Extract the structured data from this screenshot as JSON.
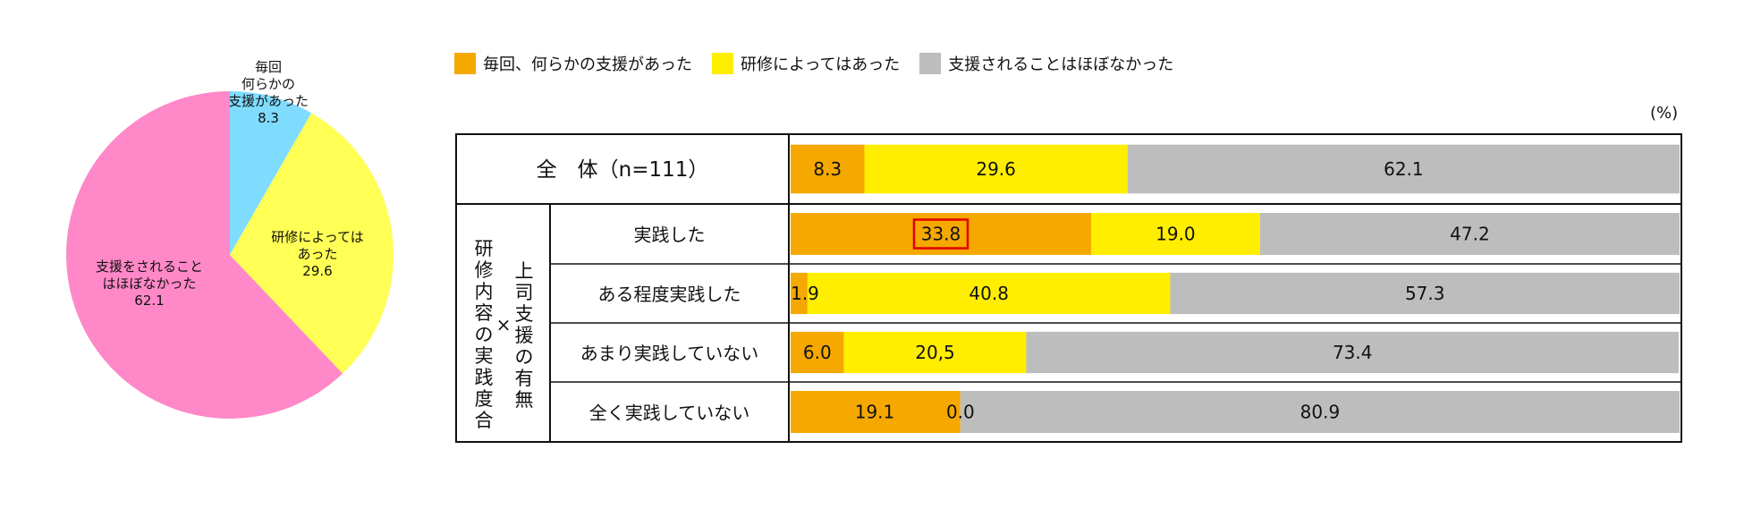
{
  "colors": {
    "every_time": "#f5a800",
    "depends": "#ffee00",
    "rarely": "#bdbdbd",
    "pie_every_time": "#7fdcff",
    "pie_depends": "#ffff55",
    "pie_rarely": "#ff88c8",
    "highlight": "#e00000"
  },
  "unit_label": "(%)",
  "chart_data": [
    {
      "type": "pie",
      "slices": [
        {
          "label_lines": [
            "毎回",
            "何らかの",
            "支援があった"
          ],
          "value": 8.3,
          "value_text": "8.3",
          "color_key": "pie_every_time"
        },
        {
          "label_lines": [
            "研修によっては",
            "あった"
          ],
          "value": 29.6,
          "value_text": "29.6",
          "color_key": "pie_depends"
        },
        {
          "label_lines": [
            "支援をされること",
            "はほぼなかった"
          ],
          "value": 62.1,
          "value_text": "62.1",
          "color_key": "pie_rarely"
        }
      ]
    },
    {
      "type": "bar",
      "orientation": "horizontal",
      "stacked": true,
      "legend": [
        "毎回、何らかの支援があった",
        "研修によってはあった",
        "支援されることはほぼなかった"
      ],
      "group_label": "研修内容の実践度合",
      "group_label_2": "上司支援の有無",
      "group_separator": "×",
      "rows": [
        {
          "label": "全　体（n=111）",
          "values": [
            8.3,
            29.6,
            62.1
          ],
          "value_texts": [
            "8.3",
            "29.6",
            "62.1"
          ]
        },
        {
          "label": "実践した",
          "values": [
            33.8,
            19.0,
            47.2
          ],
          "value_texts": [
            "33.8",
            "19.0",
            "47.2"
          ],
          "highlight_index": 0
        },
        {
          "label": "ある程度実践した",
          "values": [
            1.9,
            40.8,
            57.3
          ],
          "value_texts": [
            "1.9",
            "40.8",
            "57.3"
          ]
        },
        {
          "label": "あまり実践していない",
          "values": [
            6.0,
            20.5,
            73.4
          ],
          "value_texts": [
            "6.0",
            "20,5",
            "73.4"
          ]
        },
        {
          "label": "全く実践していない",
          "values": [
            19.1,
            0.0,
            80.9
          ],
          "value_texts": [
            "19.1",
            "0.0",
            "80.9"
          ]
        }
      ],
      "xlim": [
        0,
        100
      ]
    }
  ]
}
